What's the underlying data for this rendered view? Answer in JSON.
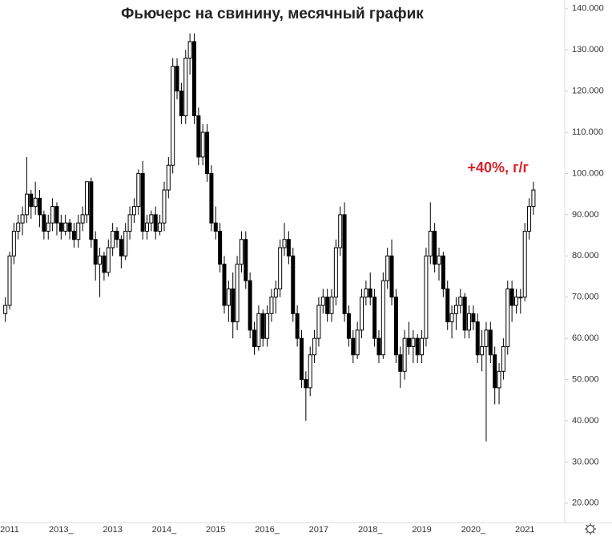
{
  "chart_data": {
    "type": "candlestick",
    "title": "Фьючерс на свинину, месячный график",
    "annotation": "+40%, г/г",
    "categories": [
      null,
      "2011",
      null,
      null,
      null,
      null,
      null,
      null,
      null,
      null,
      null,
      null,
      null,
      "2013_",
      null,
      null,
      null,
      null,
      null,
      null,
      null,
      null,
      null,
      null,
      null,
      "2013",
      null,
      null,
      null,
      null,
      null,
      null,
      null,
      null,
      null,
      null,
      null,
      "2014_",
      null,
      null,
      null,
      null,
      null,
      null,
      null,
      null,
      null,
      null,
      null,
      "2015",
      null,
      null,
      null,
      null,
      null,
      null,
      null,
      null,
      null,
      null,
      null,
      "2016_",
      null,
      null,
      null,
      null,
      null,
      null,
      null,
      null,
      null,
      null,
      null,
      "2017",
      null,
      null,
      null,
      null,
      null,
      null,
      null,
      null,
      null,
      null,
      null,
      "2018_",
      null,
      null,
      null,
      null,
      null,
      null,
      null,
      null,
      null,
      null,
      null,
      "2019",
      null,
      null,
      null,
      null,
      null,
      null,
      null,
      null,
      null,
      null,
      null,
      "2020_",
      null,
      null,
      null,
      null,
      null,
      null,
      null,
      null,
      null,
      null,
      null,
      "2021",
      null,
      null
    ],
    "open": [
      66,
      68,
      80,
      86,
      88,
      90,
      95,
      92,
      94,
      90,
      86,
      88,
      92,
      88,
      86,
      88,
      86,
      84,
      88,
      90,
      98,
      84,
      78,
      80,
      76,
      82,
      86,
      84,
      80,
      86,
      90,
      92,
      100,
      86,
      88,
      90,
      86,
      88,
      96,
      102,
      126,
      120,
      114,
      128,
      132,
      114,
      104,
      110,
      100,
      88,
      86,
      78,
      68,
      72,
      64,
      78,
      84,
      74,
      62,
      58,
      66,
      60,
      66,
      70,
      72,
      82,
      84,
      80,
      66,
      60,
      50,
      48,
      56,
      60,
      68,
      70,
      66,
      70,
      82,
      90,
      66,
      60,
      56,
      62,
      70,
      72,
      70,
      60,
      56,
      74,
      80,
      70,
      56,
      52,
      60,
      58,
      60,
      56,
      60,
      80,
      86,
      78,
      80,
      72,
      64,
      66,
      68,
      70,
      62,
      66,
      64,
      56,
      58,
      62,
      56,
      48,
      52,
      58,
      72,
      68,
      70,
      70,
      86,
      92
    ],
    "high": [
      70,
      81,
      88,
      90,
      92,
      104,
      96,
      98,
      96,
      91,
      90,
      94,
      93,
      90,
      90,
      89,
      88,
      90,
      92,
      98,
      99,
      86,
      82,
      81,
      84,
      88,
      87,
      85,
      88,
      92,
      94,
      101,
      103,
      90,
      91,
      92,
      90,
      98,
      104,
      128,
      128,
      122,
      130,
      134,
      134,
      116,
      112,
      112,
      102,
      92,
      88,
      80,
      74,
      76,
      80,
      86,
      86,
      76,
      64,
      68,
      67,
      68,
      72,
      74,
      84,
      88,
      86,
      82,
      68,
      62,
      52,
      58,
      62,
      70,
      72,
      72,
      72,
      84,
      92,
      93,
      68,
      62,
      64,
      72,
      74,
      76,
      72,
      62,
      76,
      82,
      84,
      72,
      58,
      62,
      64,
      62,
      61,
      62,
      82,
      93,
      88,
      82,
      81,
      74,
      68,
      70,
      72,
      71,
      68,
      68,
      66,
      62,
      64,
      64,
      58,
      54,
      60,
      74,
      74,
      72,
      72,
      88,
      94,
      98
    ],
    "low": [
      64,
      67,
      78,
      84,
      85,
      88,
      89,
      90,
      87,
      84,
      84,
      86,
      85,
      84,
      85,
      84,
      82,
      82,
      86,
      88,
      82,
      74,
      70,
      74,
      75,
      80,
      82,
      77,
      79,
      84,
      88,
      90,
      84,
      84,
      86,
      84,
      85,
      86,
      94,
      100,
      118,
      112,
      112,
      124,
      112,
      102,
      102,
      98,
      86,
      84,
      76,
      66,
      64,
      60,
      62,
      76,
      72,
      60,
      56,
      57,
      58,
      58,
      64,
      66,
      70,
      80,
      78,
      64,
      58,
      48,
      40,
      46,
      54,
      58,
      66,
      64,
      64,
      68,
      80,
      64,
      58,
      54,
      55,
      60,
      68,
      68,
      58,
      54,
      55,
      72,
      68,
      54,
      48,
      50,
      56,
      54,
      54,
      54,
      58,
      78,
      76,
      74,
      70,
      62,
      60,
      62,
      66,
      60,
      60,
      62,
      54,
      52,
      35,
      54,
      44,
      44,
      50,
      56,
      64,
      66,
      66,
      69,
      84,
      90
    ],
    "close": [
      68,
      80,
      86,
      88,
      90,
      95,
      92,
      94,
      90,
      86,
      88,
      92,
      88,
      86,
      88,
      86,
      84,
      88,
      90,
      98,
      84,
      78,
      80,
      76,
      82,
      86,
      84,
      80,
      86,
      90,
      92,
      100,
      86,
      88,
      90,
      86,
      88,
      96,
      102,
      126,
      120,
      114,
      128,
      132,
      114,
      104,
      110,
      100,
      88,
      86,
      78,
      68,
      72,
      64,
      78,
      84,
      74,
      62,
      58,
      66,
      60,
      66,
      70,
      72,
      82,
      84,
      80,
      66,
      60,
      50,
      48,
      56,
      60,
      68,
      70,
      66,
      70,
      82,
      90,
      66,
      60,
      56,
      62,
      70,
      72,
      70,
      60,
      56,
      74,
      80,
      70,
      56,
      52,
      60,
      58,
      60,
      56,
      60,
      80,
      86,
      78,
      80,
      72,
      64,
      66,
      68,
      70,
      62,
      66,
      64,
      56,
      58,
      62,
      56,
      48,
      52,
      58,
      72,
      68,
      70,
      70,
      86,
      92,
      96
    ],
    "up_color": "#ffffff",
    "down_color": "#000000",
    "ylim": [
      15.3,
      142.1
    ],
    "yticks": [
      {
        "value": 20,
        "label": "20.000"
      },
      {
        "value": 30,
        "label": "30.000"
      },
      {
        "value": 40,
        "label": "40.000"
      },
      {
        "value": 50,
        "label": "50.000"
      },
      {
        "value": 60,
        "label": "60.000"
      },
      {
        "value": 70,
        "label": "70.000"
      },
      {
        "value": 80,
        "label": "80.000"
      },
      {
        "value": 90,
        "label": "90.000"
      },
      {
        "value": 100,
        "label": "100.000"
      },
      {
        "value": 110,
        "label": "110.000"
      },
      {
        "value": 120,
        "label": "120.000"
      },
      {
        "value": 130,
        "label": "130.000"
      },
      {
        "value": 140,
        "label": "140.000"
      }
    ]
  }
}
